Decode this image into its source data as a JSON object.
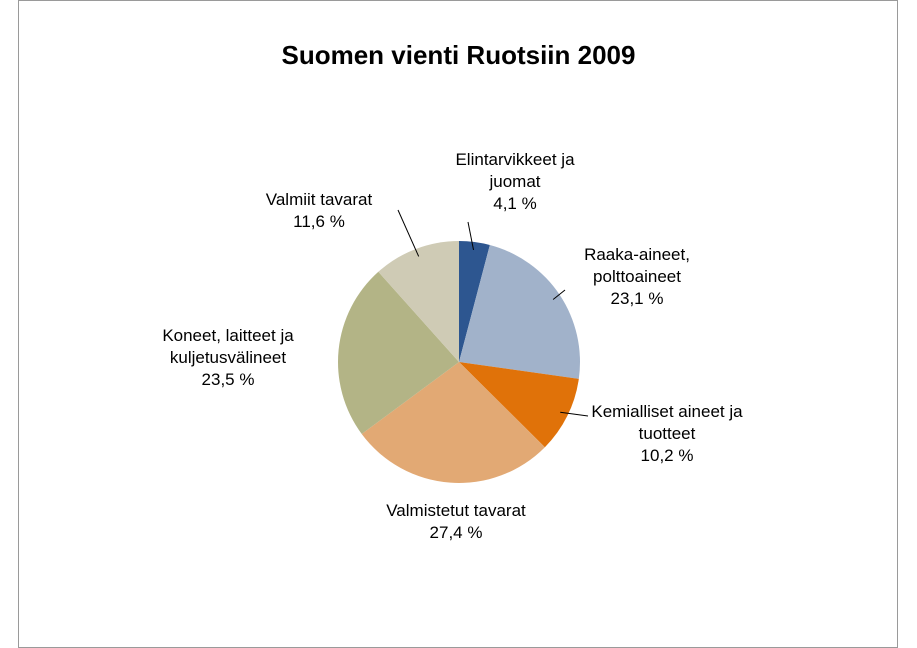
{
  "chart_data": {
    "type": "pie",
    "title": "Suomen vienti Ruotsiin 2009",
    "categories": [
      "Elintarvikkeet ja juomat",
      "Raaka-aineet, polttoaineet",
      "Kemialliset aineet ja tuotteet",
      "Valmistetut tavarat",
      "Koneet, laitteet ja kuljetusvälineet",
      "Valmiit tavarat"
    ],
    "values": [
      4.1,
      23.1,
      10.2,
      27.4,
      23.5,
      11.6
    ],
    "value_labels": [
      "4,1 %",
      "23,1 %",
      "10,2 %",
      "27,4 %",
      "23,5 %",
      "11,6 %"
    ],
    "colors": [
      "#2d5690",
      "#a1b2ca",
      "#e07209",
      "#e2a974",
      "#b3b486",
      "#cfcbb5"
    ]
  }
}
